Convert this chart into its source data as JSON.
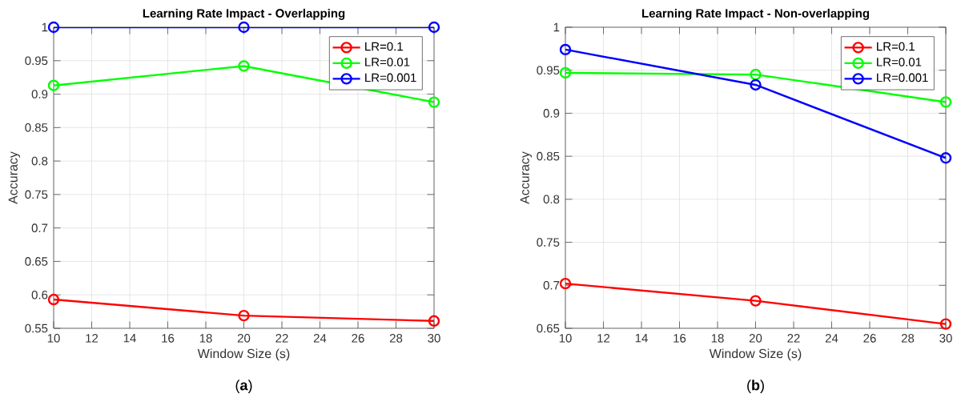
{
  "chart_data": [
    {
      "type": "line",
      "title": "Learning Rate Impact - Overlapping",
      "xlabel": "Window Size (s)",
      "ylabel": "Accuracy",
      "x": [
        10,
        20,
        30
      ],
      "series": [
        {
          "name": "LR=0.1",
          "color": "#ff0000",
          "values": [
            0.593,
            0.569,
            0.561
          ]
        },
        {
          "name": "LR=0.01",
          "color": "#00ff00",
          "values": [
            0.913,
            0.942,
            0.888
          ]
        },
        {
          "name": "LR=0.001",
          "color": "#0000ff",
          "values": [
            1,
            1,
            1
          ]
        }
      ],
      "xlim": [
        10,
        30
      ],
      "xticks": [
        10,
        12,
        14,
        16,
        18,
        20,
        22,
        24,
        26,
        28,
        30
      ],
      "ylim": [
        0.55,
        1
      ],
      "yticks": [
        0.55,
        0.6,
        0.65,
        0.7,
        0.75,
        0.8,
        0.85,
        0.9,
        0.95,
        1
      ],
      "grid": true,
      "legend": "top right",
      "marker": "circle",
      "line_style": "solid",
      "annotations": [
        "(**a**)"
      ]
    },
    {
      "type": "line",
      "title": "Learning Rate Impact - Non-overlapping",
      "xlabel": "Window Size (s)",
      "ylabel": "Accuracy",
      "x": [
        10,
        20,
        30
      ],
      "series": [
        {
          "name": "LR=0.1",
          "color": "#ff0000",
          "values": [
            0.702,
            0.682,
            0.655
          ]
        },
        {
          "name": "LR=0.01",
          "color": "#00ff00",
          "values": [
            0.947,
            0.945,
            0.913
          ]
        },
        {
          "name": "LR=0.001",
          "color": "#0000ff",
          "values": [
            0.974,
            0.933,
            0.848
          ]
        }
      ],
      "xlim": [
        10,
        30
      ],
      "xticks": [
        10,
        12,
        14,
        16,
        18,
        20,
        22,
        24,
        26,
        28,
        30
      ],
      "ylim": [
        0.65,
        1
      ],
      "yticks": [
        0.65,
        0.7,
        0.75,
        0.8,
        0.85,
        0.9,
        0.95,
        1
      ],
      "grid": true,
      "legend": "top right",
      "marker": "circle",
      "line_style": "solid",
      "annotations": [
        "(**b**)"
      ]
    }
  ]
}
